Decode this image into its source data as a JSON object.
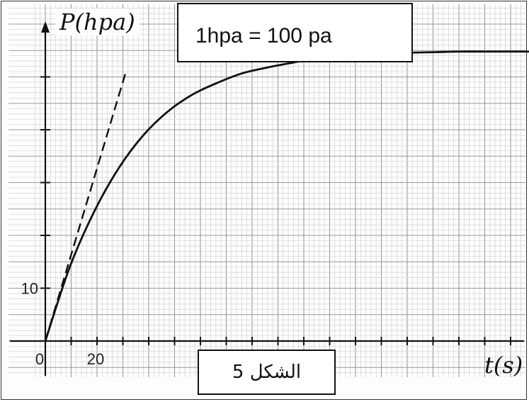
{
  "chart_data": {
    "type": "line",
    "title": "",
    "ylabel": "P(hpa)",
    "xlabel": "t(s)",
    "xlim": [
      0,
      200
    ],
    "ylim": [
      0,
      60
    ],
    "x_tick_labels": [
      "0",
      "20"
    ],
    "y_tick_labels": [
      "10"
    ],
    "grid": true,
    "series": [
      {
        "x": [
          0,
          10,
          20,
          30,
          40,
          50,
          60,
          70,
          80,
          90,
          100,
          110,
          120,
          130,
          140,
          150,
          160,
          170,
          180,
          190,
          200
        ],
        "y": [
          0,
          14,
          24.5,
          32.7,
          38.9,
          43.4,
          46.6,
          48.8,
          50.6,
          51.7,
          52.6,
          53.4,
          53.9,
          54.3,
          54.5,
          54.6,
          54.7,
          54.8,
          54.8,
          54.8,
          54.8
        ]
      }
    ],
    "tangent_line": {
      "x": [
        0,
        33
      ],
      "y": [
        0,
        51
      ]
    },
    "annotation": "1hpa = 100 pa",
    "caption": "الشكل 5"
  }
}
